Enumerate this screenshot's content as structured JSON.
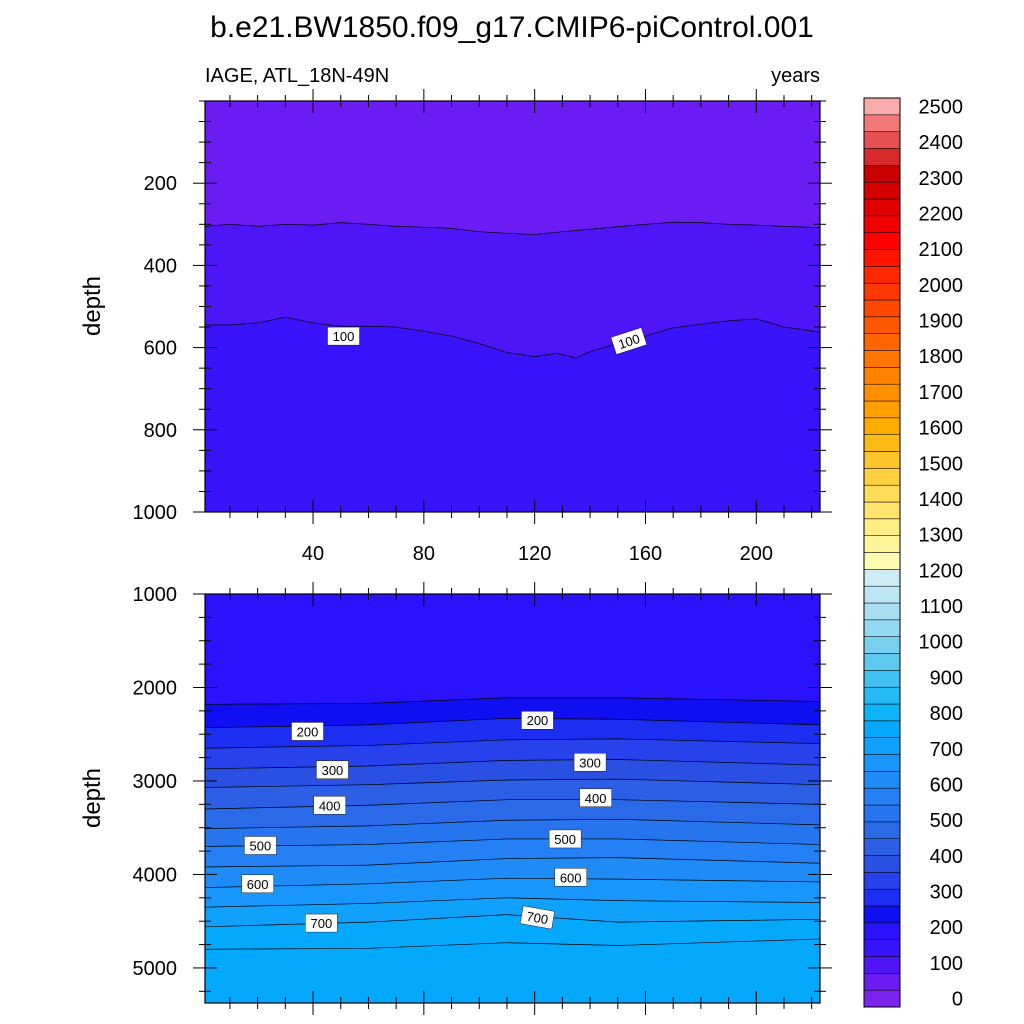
{
  "chart_data": [
    {
      "type": "contour",
      "title": "b.e21.BW1850.f09_g17.CMIP6-piControl.001",
      "left_string": "IAGE, ATL_18N-49N",
      "right_string": "years",
      "ylabel": "depth",
      "xlim": [
        1,
        223
      ],
      "ylim": [
        1000,
        0
      ],
      "y_reversed": true,
      "x_ticks": [
        40,
        80,
        120,
        160,
        200
      ],
      "y_ticks": [
        200,
        400,
        600,
        800,
        1000
      ],
      "fill_levels": [
        {
          "min": 0,
          "max": 50,
          "color": "#6a1cf2"
        },
        {
          "min": 50,
          "max": 100,
          "color": "#4e16f7"
        },
        {
          "min": 100,
          "max": 150,
          "color": "#3914fa"
        }
      ],
      "contours": [
        {
          "level": 50,
          "depth_profile": [
            [
              1,
              305
            ],
            [
              10,
              300
            ],
            [
              20,
              305
            ],
            [
              30,
              300
            ],
            [
              40,
              302
            ],
            [
              50,
              296
            ],
            [
              60,
              300
            ],
            [
              70,
              305
            ],
            [
              80,
              307
            ],
            [
              90,
              310
            ],
            [
              100,
              318
            ],
            [
              110,
              322
            ],
            [
              120,
              325
            ],
            [
              130,
              318
            ],
            [
              140,
              312
            ],
            [
              150,
              306
            ],
            [
              160,
              300
            ],
            [
              170,
              295
            ],
            [
              180,
              296
            ],
            [
              190,
              300
            ],
            [
              200,
              302
            ],
            [
              210,
              305
            ],
            [
              223,
              308
            ]
          ]
        },
        {
          "level": 100,
          "depth_profile": [
            [
              1,
              545
            ],
            [
              10,
              545
            ],
            [
              20,
              540
            ],
            [
              30,
              526
            ],
            [
              40,
              540
            ],
            [
              50,
              548
            ],
            [
              60,
              548
            ],
            [
              70,
              550
            ],
            [
              80,
              560
            ],
            [
              90,
              572
            ],
            [
              100,
              590
            ],
            [
              110,
              612
            ],
            [
              120,
              622
            ],
            [
              128,
              614
            ],
            [
              135,
              625
            ],
            [
              140,
              610
            ],
            [
              150,
              590
            ],
            [
              160,
              572
            ],
            [
              170,
              552
            ],
            [
              180,
              543
            ],
            [
              190,
              535
            ],
            [
              200,
              530
            ],
            [
              210,
              550
            ],
            [
              223,
              562
            ]
          ]
        }
      ],
      "contour_labels": [
        {
          "text": "100",
          "x": 51,
          "y": 572,
          "angle": 0
        },
        {
          "text": "100",
          "x": 154,
          "y": 584,
          "angle": -18
        }
      ]
    },
    {
      "type": "contour",
      "ylabel": "depth",
      "xlim": [
        1,
        223
      ],
      "ylim": [
        5375,
        1000
      ],
      "y_reversed": true,
      "x_ticks": [
        40,
        80,
        120,
        160,
        200
      ],
      "y_ticks": [
        1000,
        2000,
        3000,
        4000,
        5000
      ],
      "fill_levels": [
        {
          "min": 150,
          "max": 200,
          "color": "#2a12fb"
        },
        {
          "min": 200,
          "max": 250,
          "color": "#0f0ff2"
        },
        {
          "min": 250,
          "max": 300,
          "color": "#1c2ef2"
        },
        {
          "min": 300,
          "max": 350,
          "color": "#2741ec"
        },
        {
          "min": 350,
          "max": 400,
          "color": "#2a4fe3"
        },
        {
          "min": 400,
          "max": 450,
          "color": "#2c5ee6"
        },
        {
          "min": 450,
          "max": 500,
          "color": "#2a6ae8"
        },
        {
          "min": 500,
          "max": 550,
          "color": "#2675ef"
        },
        {
          "min": 550,
          "max": 600,
          "color": "#2480f4"
        },
        {
          "min": 600,
          "max": 650,
          "color": "#1f8bf7"
        },
        {
          "min": 650,
          "max": 700,
          "color": "#1896fb"
        },
        {
          "min": 700,
          "max": 750,
          "color": "#10a1fd"
        },
        {
          "min": 750,
          "max": 800,
          "color": "#04a9fe"
        }
      ],
      "contours": [
        {
          "level": 150,
          "depth_profile": [
            [
              1,
              2180
            ],
            [
              60,
              2170
            ],
            [
              110,
              2110
            ],
            [
              150,
              2110
            ],
            [
              223,
              2150
            ]
          ]
        },
        {
          "level": 200,
          "depth_profile": [
            [
              1,
              2430
            ],
            [
              60,
              2400
            ],
            [
              110,
              2330
            ],
            [
              150,
              2340
            ],
            [
              223,
              2400
            ]
          ]
        },
        {
          "level": 250,
          "depth_profile": [
            [
              1,
              2650
            ],
            [
              60,
              2620
            ],
            [
              110,
              2560
            ],
            [
              150,
              2550
            ],
            [
              223,
              2600
            ]
          ]
        },
        {
          "level": 300,
          "depth_profile": [
            [
              1,
              2870
            ],
            [
              60,
              2840
            ],
            [
              110,
              2780
            ],
            [
              150,
              2770
            ],
            [
              223,
              2830
            ]
          ]
        },
        {
          "level": 350,
          "depth_profile": [
            [
              1,
              3070
            ],
            [
              60,
              3040
            ],
            [
              110,
              2990
            ],
            [
              150,
              2980
            ],
            [
              223,
              3040
            ]
          ]
        },
        {
          "level": 400,
          "depth_profile": [
            [
              1,
              3300
            ],
            [
              60,
              3260
            ],
            [
              110,
              3200
            ],
            [
              150,
              3200
            ],
            [
              223,
              3250
            ]
          ]
        },
        {
          "level": 450,
          "depth_profile": [
            [
              1,
              3510
            ],
            [
              60,
              3480
            ],
            [
              110,
              3420
            ],
            [
              150,
              3410
            ],
            [
              223,
              3470
            ]
          ]
        },
        {
          "level": 500,
          "depth_profile": [
            [
              1,
              3700
            ],
            [
              60,
              3680
            ],
            [
              110,
              3620
            ],
            [
              150,
              3620
            ],
            [
              223,
              3680
            ]
          ]
        },
        {
          "level": 550,
          "depth_profile": [
            [
              1,
              3920
            ],
            [
              60,
              3900
            ],
            [
              110,
              3830
            ],
            [
              150,
              3820
            ],
            [
              223,
              3880
            ]
          ]
        },
        {
          "level": 600,
          "depth_profile": [
            [
              1,
              4140
            ],
            [
              60,
              4100
            ],
            [
              110,
              4040
            ],
            [
              150,
              4050
            ],
            [
              223,
              4080
            ]
          ]
        },
        {
          "level": 650,
          "depth_profile": [
            [
              1,
              4350
            ],
            [
              60,
              4310
            ],
            [
              110,
              4250
            ],
            [
              150,
              4280
            ],
            [
              223,
              4300
            ]
          ]
        },
        {
          "level": 700,
          "depth_profile": [
            [
              1,
              4560
            ],
            [
              60,
              4510
            ],
            [
              110,
              4430
            ],
            [
              150,
              4510
            ],
            [
              223,
              4480
            ]
          ]
        },
        {
          "level": 750,
          "depth_profile": [
            [
              1,
              4800
            ],
            [
              60,
              4790
            ],
            [
              110,
              4730
            ],
            [
              150,
              4760
            ],
            [
              223,
              4690
            ]
          ]
        }
      ],
      "contour_labels": [
        {
          "text": "200",
          "x": 38,
          "y": 2470,
          "angle": 0
        },
        {
          "text": "200",
          "x": 121,
          "y": 2350,
          "angle": 0
        },
        {
          "text": "300",
          "x": 47,
          "y": 2880,
          "angle": 0
        },
        {
          "text": "300",
          "x": 140,
          "y": 2800,
          "angle": 0
        },
        {
          "text": "400",
          "x": 46,
          "y": 3260,
          "angle": 0
        },
        {
          "text": "400",
          "x": 142,
          "y": 3180,
          "angle": 0
        },
        {
          "text": "500",
          "x": 21,
          "y": 3690,
          "angle": 0
        },
        {
          "text": "500",
          "x": 131,
          "y": 3620,
          "angle": 0
        },
        {
          "text": "600",
          "x": 20,
          "y": 4100,
          "angle": 0
        },
        {
          "text": "600",
          "x": 133,
          "y": 4030,
          "angle": 0
        },
        {
          "text": "700",
          "x": 43,
          "y": 4520,
          "angle": 0
        },
        {
          "text": "700",
          "x": 121,
          "y": 4460,
          "angle": 10
        }
      ]
    }
  ],
  "colorbar": {
    "labels": [
      "0",
      "100",
      "200",
      "300",
      "400",
      "500",
      "600",
      "700",
      "800",
      "900",
      "1000",
      "1100",
      "1200",
      "1300",
      "1400",
      "1500",
      "1600",
      "1700",
      "1800",
      "1900",
      "2000",
      "2100",
      "2200",
      "2300",
      "2400",
      "2500"
    ],
    "colors": [
      "#7b23ee",
      "#6a1cf2",
      "#4e16f7",
      "#3914fa",
      "#2a12fb",
      "#0f0ff2",
      "#1c2ef2",
      "#2741ec",
      "#2a4fe3",
      "#2c5ee6",
      "#2a6ae8",
      "#2675ef",
      "#2480f4",
      "#1f8bf7",
      "#1896fb",
      "#10a1fd",
      "#04a9fe",
      "#0db4fa",
      "#27bbf3",
      "#42c2f0",
      "#5fc8ef",
      "#78cfef",
      "#91d8f1",
      "#a8e0f2",
      "#bce6f3",
      "#cfecf6",
      "#fffbb0",
      "#fff49a",
      "#ffed85",
      "#ffe46e",
      "#ffdc58",
      "#ffd142",
      "#ffc62c",
      "#ffba16",
      "#ffac00",
      "#ff9f00",
      "#ff9100",
      "#ff8300",
      "#ff7500",
      "#ff6600",
      "#ff5700",
      "#ff4800",
      "#ff3800",
      "#ff2800",
      "#ff1500",
      "#ff0000",
      "#f00000",
      "#e00000",
      "#d40000",
      "#c80000",
      "#d82a2a",
      "#e65050",
      "#f07878",
      "#f9aaaa"
    ]
  }
}
